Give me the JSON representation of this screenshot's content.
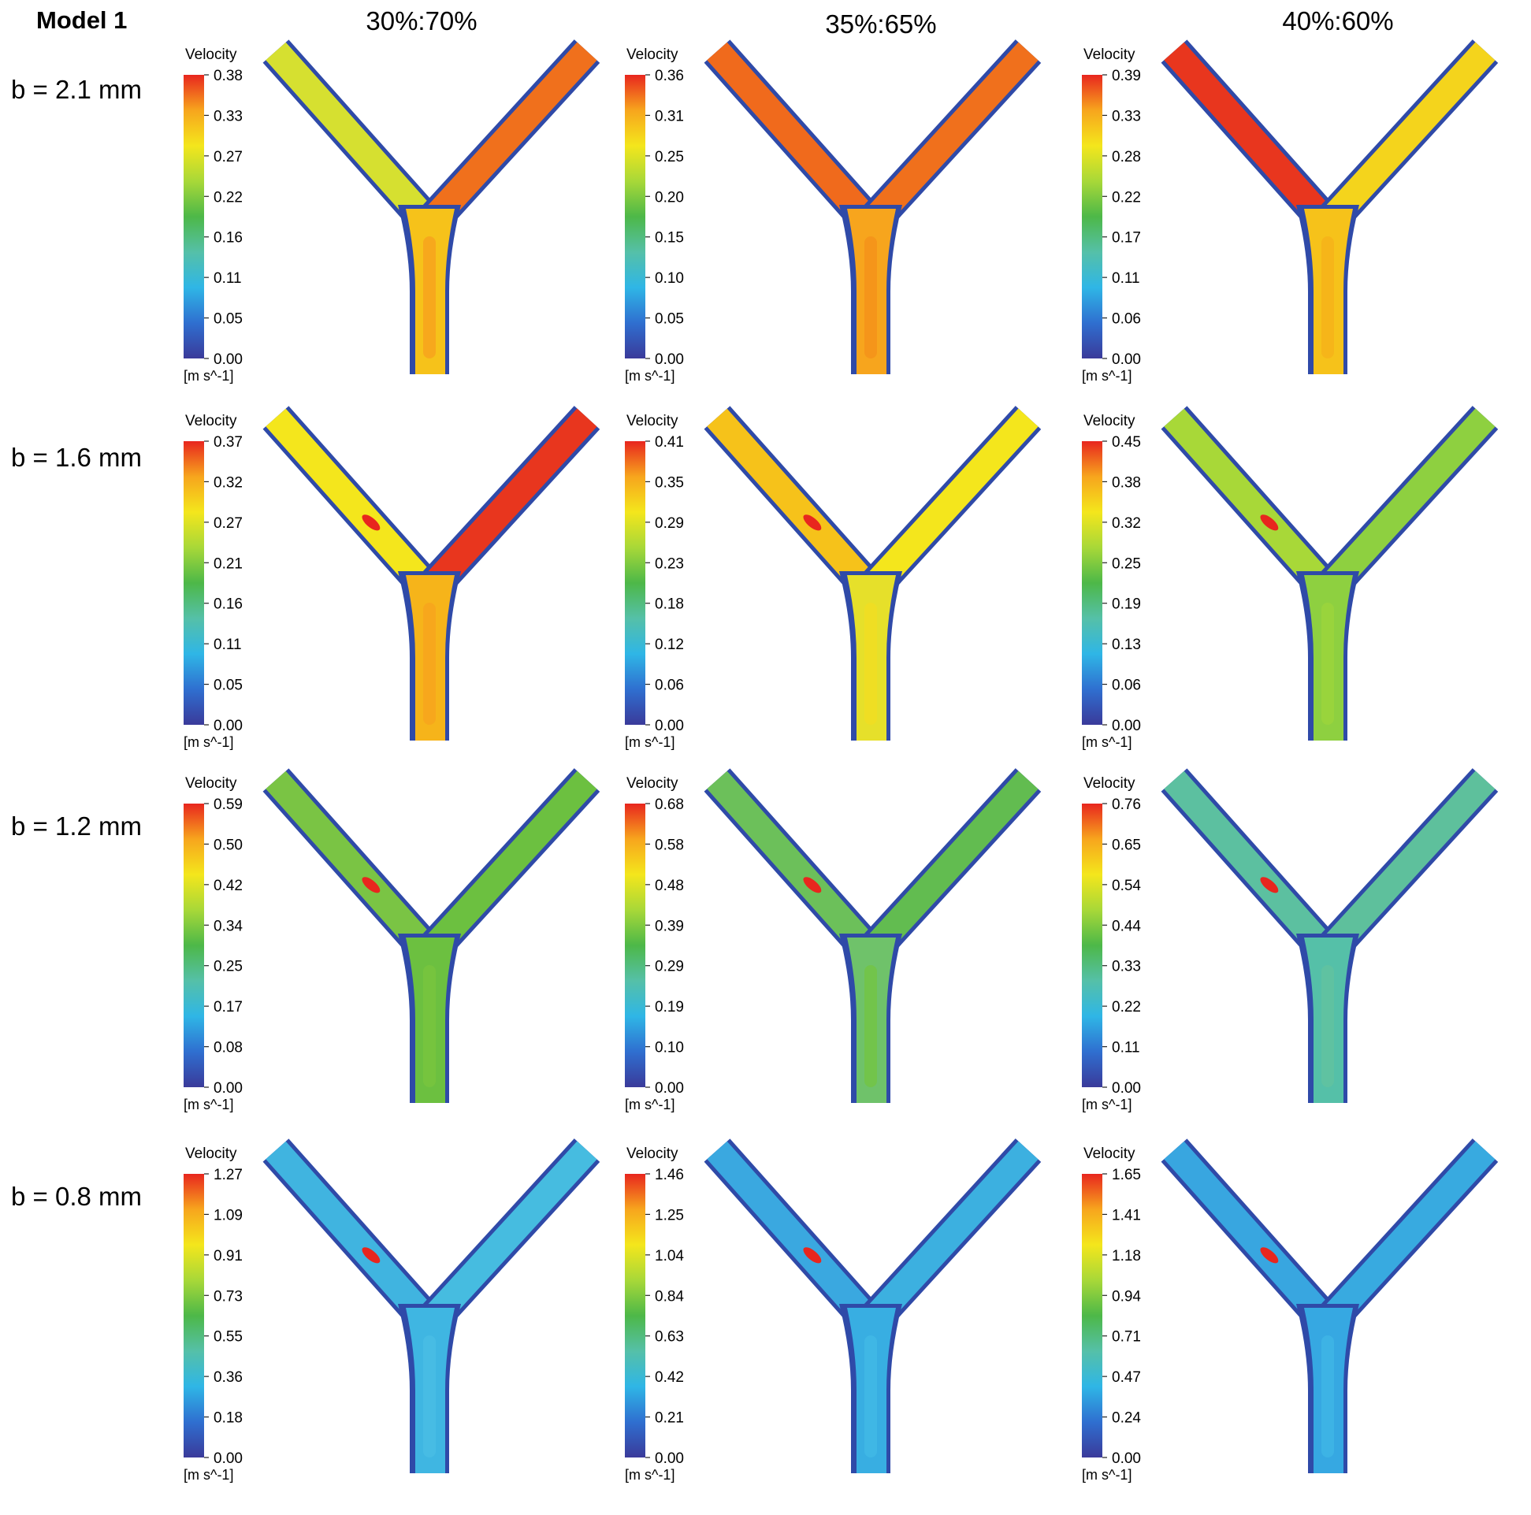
{
  "model_title": "Model 1",
  "columns": [
    "30%:70%",
    "35%:65%",
    "40%:60%"
  ],
  "rows": [
    "b = 2.1 mm",
    "b = 1.6 mm",
    "b = 1.2 mm",
    "b = 0.8 mm"
  ],
  "legend_title": "Velocity",
  "legend_unit": "[m s^-1]",
  "colormap": [
    "#3a3a9a",
    "#2f6fd0",
    "#2fb6e6",
    "#55c0a8",
    "#4db848",
    "#a8d838",
    "#f4e61c",
    "#f7a51d",
    "#e8261e"
  ],
  "panels": [
    [
      {
        "ticks": [
          "0.38",
          "0.33",
          "0.27",
          "0.22",
          "0.16",
          "0.11",
          "0.05",
          "0.00"
        ],
        "constricted": false,
        "fields": {
          "trunk": "#f6c21a",
          "left": "#d6e030",
          "right": "#f0701c",
          "core": "#f7a51d"
        }
      },
      {
        "ticks": [
          "0.36",
          "0.31",
          "0.25",
          "0.20",
          "0.15",
          "0.10",
          "0.05",
          "0.00"
        ],
        "constricted": false,
        "fields": {
          "trunk": "#f7a51d",
          "left": "#f06a1c",
          "right": "#f0701c",
          "core": "#f4931b"
        }
      },
      {
        "ticks": [
          "0.39",
          "0.33",
          "0.28",
          "0.22",
          "0.17",
          "0.11",
          "0.06",
          "0.00"
        ],
        "constricted": false,
        "fields": {
          "trunk": "#f6c21a",
          "left": "#e8361e",
          "right": "#f4d41c",
          "core": "#f6b41a"
        }
      }
    ],
    [
      {
        "ticks": [
          "0.37",
          "0.32",
          "0.27",
          "0.21",
          "0.16",
          "0.11",
          "0.05",
          "0.00"
        ],
        "constricted": true,
        "fields": {
          "trunk": "#f6b41a",
          "left": "#f4e61c",
          "right": "#e8361e",
          "core": "#f7a51d"
        }
      },
      {
        "ticks": [
          "0.41",
          "0.35",
          "0.29",
          "0.23",
          "0.18",
          "0.12",
          "0.06",
          "0.00"
        ],
        "constricted": true,
        "fields": {
          "trunk": "#e6e02a",
          "left": "#f6c21a",
          "right": "#f4e61c",
          "core": "#f0de22"
        }
      },
      {
        "ticks": [
          "0.45",
          "0.38",
          "0.32",
          "0.25",
          "0.19",
          "0.13",
          "0.06",
          "0.00"
        ],
        "constricted": true,
        "fields": {
          "trunk": "#8ed040",
          "left": "#a8d838",
          "right": "#8ed040",
          "core": "#9ad43c"
        }
      }
    ],
    [
      {
        "ticks": [
          "0.59",
          "0.50",
          "0.42",
          "0.34",
          "0.25",
          "0.17",
          "0.08",
          "0.00"
        ],
        "constricted": true,
        "fields": {
          "trunk": "#6cc040",
          "left": "#7ac444",
          "right": "#6cc040",
          "core": "#78c43e"
        }
      },
      {
        "ticks": [
          "0.68",
          "0.58",
          "0.48",
          "0.39",
          "0.29",
          "0.19",
          "0.10",
          "0.00"
        ],
        "constricted": true,
        "fields": {
          "trunk": "#6fc26a",
          "left": "#6cc05a",
          "right": "#62bc50",
          "core": "#72c448"
        }
      },
      {
        "ticks": [
          "0.76",
          "0.65",
          "0.54",
          "0.44",
          "0.33",
          "0.22",
          "0.11",
          "0.00"
        ],
        "constricted": true,
        "fields": {
          "trunk": "#55c0a8",
          "left": "#5cc0a0",
          "right": "#5ec09c",
          "core": "#60c2a0"
        }
      }
    ],
    [
      {
        "ticks": [
          "1.27",
          "1.09",
          "0.91",
          "0.73",
          "0.55",
          "0.36",
          "0.18",
          "0.00"
        ],
        "constricted": true,
        "fields": {
          "trunk": "#3fb6e2",
          "left": "#40b4e0",
          "right": "#46bce0",
          "core": "#48bde4"
        }
      },
      {
        "ticks": [
          "1.46",
          "1.25",
          "1.04",
          "0.84",
          "0.63",
          "0.42",
          "0.21",
          "0.00"
        ],
        "constricted": true,
        "fields": {
          "trunk": "#38aee2",
          "left": "#3aa8e0",
          "right": "#3cb0e0",
          "core": "#40b8e6"
        }
      },
      {
        "ticks": [
          "1.65",
          "1.41",
          "1.18",
          "0.94",
          "0.71",
          "0.47",
          "0.24",
          "0.00"
        ],
        "constricted": true,
        "fields": {
          "trunk": "#36a8e2",
          "left": "#38a6e0",
          "right": "#38aae0",
          "core": "#3eb4e6"
        }
      }
    ]
  ]
}
